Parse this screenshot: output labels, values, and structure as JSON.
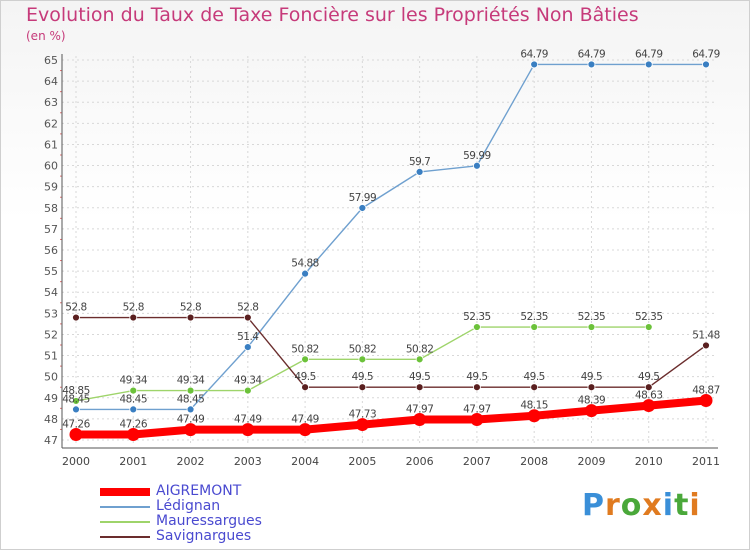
{
  "header": {
    "title": "Evolution du Taux de Taxe Foncière sur les Propriétés Non Bâties",
    "subtitle": "(en %)"
  },
  "logo": {
    "text": "Proxiti",
    "colors": [
      "#3a8fd8",
      "#e07b20",
      "#4aa83a",
      "#e07b20",
      "#3a8fd8",
      "#4aa83a",
      "#e07b20"
    ]
  },
  "chart_data": {
    "type": "line",
    "x": [
      "2000",
      "2001",
      "2002",
      "2003",
      "2004",
      "2005",
      "2006",
      "2007",
      "2008",
      "2009",
      "2010",
      "2011"
    ],
    "ylim": [
      47,
      65
    ],
    "yticks": [
      47,
      48,
      49,
      50,
      51,
      52,
      53,
      54,
      55,
      56,
      57,
      58,
      59,
      60,
      61,
      62,
      63,
      64,
      65
    ],
    "grid": true,
    "legend_position": "bottom-left",
    "series": [
      {
        "name": "AIGREMONT",
        "color": "#ff0000",
        "values": [
          47.26,
          47.26,
          47.49,
          47.49,
          47.49,
          47.73,
          47.97,
          47.97,
          48.15,
          48.39,
          48.63,
          48.87
        ],
        "labels": [
          "47.26",
          "47.26",
          "47.49",
          "47.49",
          "47.49",
          "47.73",
          "47.97",
          "47.97",
          "48.15",
          "48.39",
          "48.63",
          "48.87"
        ]
      },
      {
        "name": "Lédignan",
        "color": "#6fa0cf",
        "values": [
          48.45,
          48.45,
          48.45,
          51.4,
          54.88,
          57.99,
          59.7,
          59.99,
          64.79,
          64.79,
          64.79,
          64.79
        ],
        "labels": [
          "48.45",
          "48.45",
          "48.45",
          "51.4",
          "54.88",
          "57.99",
          "59.7",
          "59.99",
          "64.79",
          "64.79",
          "64.79",
          "64.79"
        ]
      },
      {
        "name": "Mauressargues",
        "color": "#9ed46a",
        "values": [
          48.85,
          49.34,
          49.34,
          49.34,
          50.82,
          50.82,
          50.82,
          52.35,
          52.35,
          52.35,
          52.35,
          null
        ],
        "labels": [
          "48.85",
          "49.34",
          "49.34",
          "49.34",
          "50.82",
          "50.82",
          "50.82",
          "52.35",
          "52.35",
          "52.35",
          "52.35",
          ""
        ]
      },
      {
        "name": "Savignargues",
        "color": "#6b2d2d",
        "values": [
          52.8,
          52.8,
          52.8,
          52.8,
          49.5,
          49.5,
          49.5,
          49.5,
          49.5,
          49.5,
          49.5,
          51.48
        ],
        "labels": [
          "52.8",
          "52.8",
          "52.8",
          "52.8",
          "49.5",
          "49.5",
          "49.5",
          "49.5",
          "49.5",
          "49.5",
          "49.5",
          "51.48"
        ]
      }
    ]
  }
}
